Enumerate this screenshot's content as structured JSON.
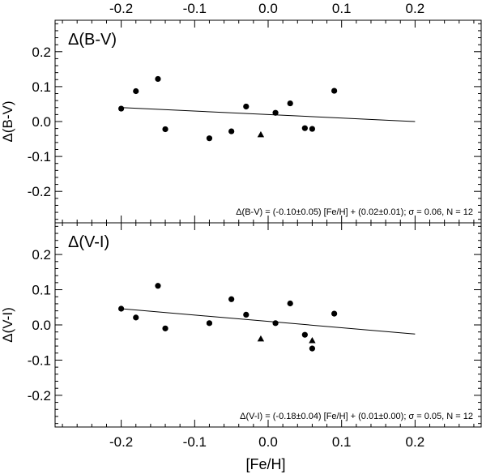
{
  "chart_data": [
    {
      "type": "scatter",
      "panel_label": "Δ(B-V)",
      "ylabel": "Δ(B-V)",
      "xlabel": "",
      "xlim": [
        -0.29,
        0.29
      ],
      "ylim": [
        -0.29,
        0.29
      ],
      "x_ticks": [
        "-0.2",
        "-0.1",
        "0.0",
        "0.1",
        "0.2"
      ],
      "y_ticks": [
        "0.2",
        "0.1",
        "0.0",
        "-0.1",
        "-0.2"
      ],
      "top_axis_labels": true,
      "bottom_axis_labels": false,
      "series": [
        {
          "marker": "circle",
          "points": [
            [
              -0.2,
              0.037
            ],
            [
              -0.18,
              0.087
            ],
            [
              -0.15,
              0.122
            ],
            [
              -0.14,
              -0.022
            ],
            [
              -0.08,
              -0.048
            ],
            [
              -0.05,
              -0.028
            ],
            [
              -0.03,
              0.043
            ],
            [
              0.01,
              0.025
            ],
            [
              0.03,
              0.052
            ],
            [
              0.05,
              -0.019
            ],
            [
              0.06,
              -0.021
            ],
            [
              0.09,
              0.088
            ]
          ]
        },
        {
          "marker": "triangle",
          "points": [
            [
              -0.01,
              -0.038
            ]
          ]
        }
      ],
      "fit": {
        "slope": -0.1,
        "intercept": 0.02,
        "x_range": [
          -0.2,
          0.2
        ]
      },
      "annotation": "Δ(B-V) = (-0.10±0.05) [Fe/H] + (0.02±0.01); σ = 0.06, N =  12"
    },
    {
      "type": "scatter",
      "panel_label": "Δ(V-I)",
      "ylabel": "Δ(V-I)",
      "xlabel": "[Fe/H]",
      "xlim": [
        -0.29,
        0.29
      ],
      "ylim": [
        -0.29,
        0.29
      ],
      "x_ticks": [
        "-0.2",
        "-0.1",
        "0.0",
        "0.1",
        "0.2"
      ],
      "y_ticks": [
        "0.2",
        "0.1",
        "0.0",
        "-0.1",
        "-0.2"
      ],
      "top_axis_labels": false,
      "bottom_axis_labels": true,
      "series": [
        {
          "marker": "circle",
          "points": [
            [
              -0.2,
              0.046
            ],
            [
              -0.18,
              0.021
            ],
            [
              -0.15,
              0.111
            ],
            [
              -0.14,
              -0.01
            ],
            [
              -0.08,
              0.005
            ],
            [
              -0.05,
              0.073
            ],
            [
              -0.03,
              0.029
            ],
            [
              0.01,
              0.005
            ],
            [
              0.03,
              0.061
            ],
            [
              0.05,
              -0.028
            ],
            [
              0.06,
              -0.067
            ],
            [
              0.09,
              0.032
            ]
          ]
        },
        {
          "marker": "triangle",
          "points": [
            [
              -0.01,
              -0.04
            ],
            [
              0.06,
              -0.045
            ]
          ]
        }
      ],
      "fit": {
        "slope": -0.18,
        "intercept": 0.01,
        "x_range": [
          -0.2,
          0.2
        ]
      },
      "annotation": "Δ(V-I) = (-0.18±0.04) [Fe/H] + (0.01±0.00); σ = 0.05, N =  12"
    }
  ]
}
